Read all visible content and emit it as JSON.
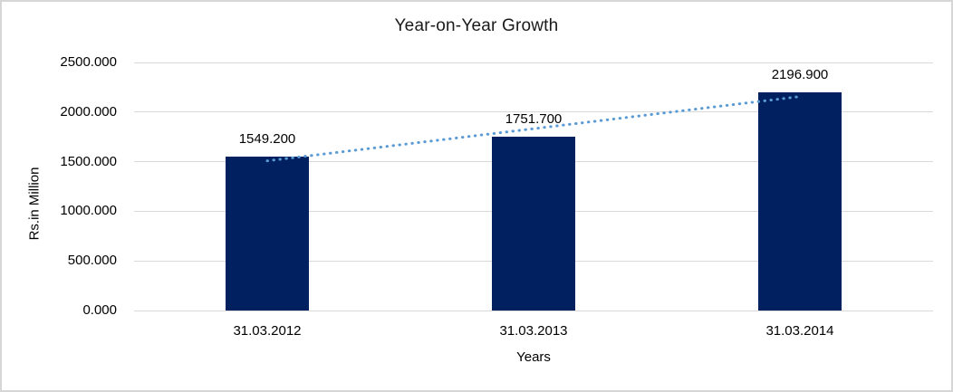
{
  "chart_data": {
    "type": "bar",
    "title": "Year-on-Year Growth",
    "xlabel": "Years",
    "ylabel": "Rs.in Million",
    "categories": [
      "31.03.2012",
      "31.03.2013",
      "31.03.2014"
    ],
    "values": [
      1549.2,
      1751.7,
      2196.9
    ],
    "value_labels": [
      "1549.200",
      "1751.700",
      "2196.900"
    ],
    "ytick_values": [
      0,
      500,
      1000,
      1500,
      2000,
      2500
    ],
    "ytick_labels": [
      "0.000",
      "500.000",
      "1000.000",
      "1500.000",
      "2000.000",
      "2500.000"
    ],
    "ylim": [
      0,
      2500
    ],
    "grid": true,
    "legend": false,
    "trendline": {
      "style": "dotted",
      "fit": "linear"
    },
    "colors": {
      "bar": "#002060",
      "trendline": "#5b9bd5",
      "gridline": "#d9d9d9",
      "text": "#000000",
      "background": "#ffffff",
      "border": "#d6d6d6"
    }
  }
}
